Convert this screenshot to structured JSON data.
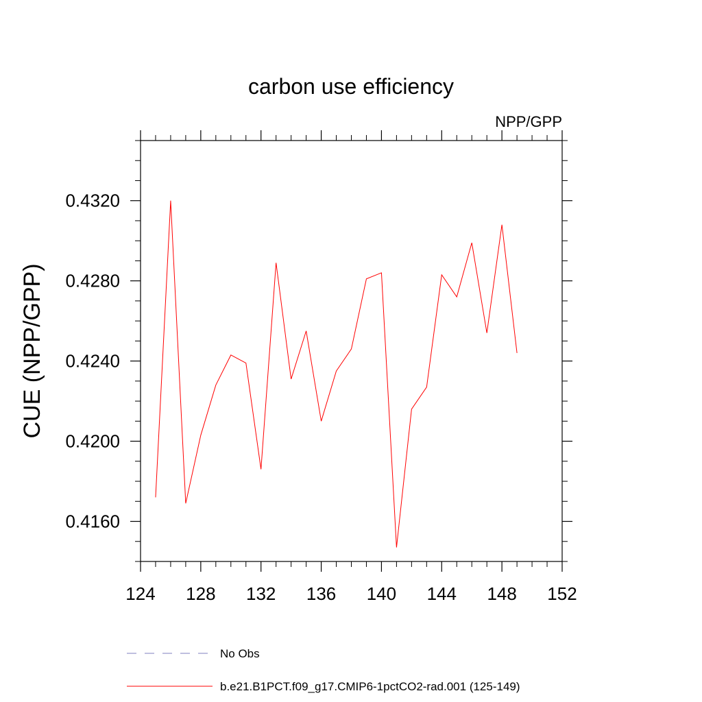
{
  "chart_data": {
    "type": "line",
    "title": "carbon use efficiency",
    "subtitle": "NPP/GPP",
    "xlabel": "",
    "ylabel": "CUE  (NPP/GPP)",
    "xlim": [
      124,
      152
    ],
    "ylim": [
      0.414,
      0.435
    ],
    "x_ticks": [
      124,
      128,
      132,
      136,
      140,
      144,
      148,
      152
    ],
    "x_tick_labels": [
      "124",
      "128",
      "132",
      "136",
      "140",
      "144",
      "148",
      "152"
    ],
    "y_ticks": [
      0.416,
      0.42,
      0.424,
      0.428,
      0.432
    ],
    "y_tick_labels": [
      "0.4160",
      "0.4200",
      "0.4240",
      "0.4280",
      "0.4320"
    ],
    "grid": false,
    "legend_position": "bottom",
    "series": [
      {
        "name": "No Obs",
        "color": "#7f7fbf",
        "dash": "dashed",
        "x": [],
        "y": []
      },
      {
        "name": "b.e21.B1PCT.f09_g17.CMIP6-1pctCO2-rad.001 (125-149)",
        "color": "#ff0000",
        "dash": "solid",
        "x": [
          125,
          126,
          127,
          128,
          129,
          130,
          131,
          132,
          133,
          134,
          135,
          136,
          137,
          138,
          139,
          140,
          141,
          142,
          143,
          144,
          145,
          146,
          147,
          148,
          149
        ],
        "y": [
          0.4172,
          0.432,
          0.4169,
          0.4203,
          0.4228,
          0.4243,
          0.4239,
          0.4186,
          0.4289,
          0.4231,
          0.4255,
          0.421,
          0.4235,
          0.4246,
          0.4281,
          0.4284,
          0.4147,
          0.4216,
          0.4227,
          0.4283,
          0.4272,
          0.4299,
          0.4254,
          0.4308,
          0.4244
        ]
      }
    ]
  }
}
